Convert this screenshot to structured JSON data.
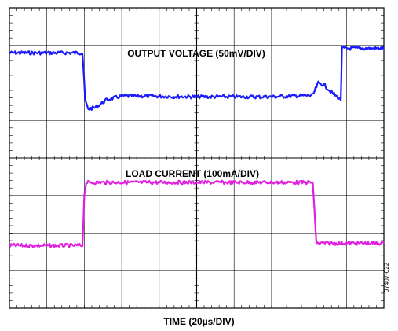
{
  "chart_data": {
    "type": "line",
    "title": "",
    "xlabel": "TIME (20µs/DIV)",
    "ylabel": "",
    "grid": true,
    "divisions": {
      "x": 10,
      "y": 8
    },
    "xlim": [
      0,
      10
    ],
    "ylim": [
      0,
      8
    ],
    "series": [
      {
        "name": "OUTPUT VOLTAGE (50mV/DIV)",
        "color": "#1a1aff",
        "x": [
          0,
          1.95,
          1.98,
          2.02,
          2.1,
          2.3,
          2.6,
          3.0,
          3.5,
          5.0,
          7.0,
          8.1,
          8.25,
          8.4,
          8.6,
          8.85,
          8.88,
          9.0,
          10.0
        ],
        "y": [
          6.8,
          6.8,
          6.35,
          5.55,
          5.3,
          5.35,
          5.55,
          5.65,
          5.65,
          5.63,
          5.63,
          5.67,
          6.0,
          5.95,
          5.75,
          5.55,
          6.92,
          6.92,
          6.92
        ]
      },
      {
        "name": "LOAD CURRENT (100mA/DIV)",
        "color": "#e020e0",
        "x": [
          0,
          1.95,
          2.0,
          2.05,
          8.1,
          8.15,
          8.2,
          10.0
        ],
        "y": [
          1.67,
          1.67,
          3.0,
          3.35,
          3.35,
          2.5,
          1.73,
          1.73
        ]
      }
    ],
    "annotations": [
      "OUTPUT VOLTAGE (50mV/DIV)",
      "LOAD CURRENT (100mA/DIV)"
    ],
    "figure_code": "07407-022"
  }
}
